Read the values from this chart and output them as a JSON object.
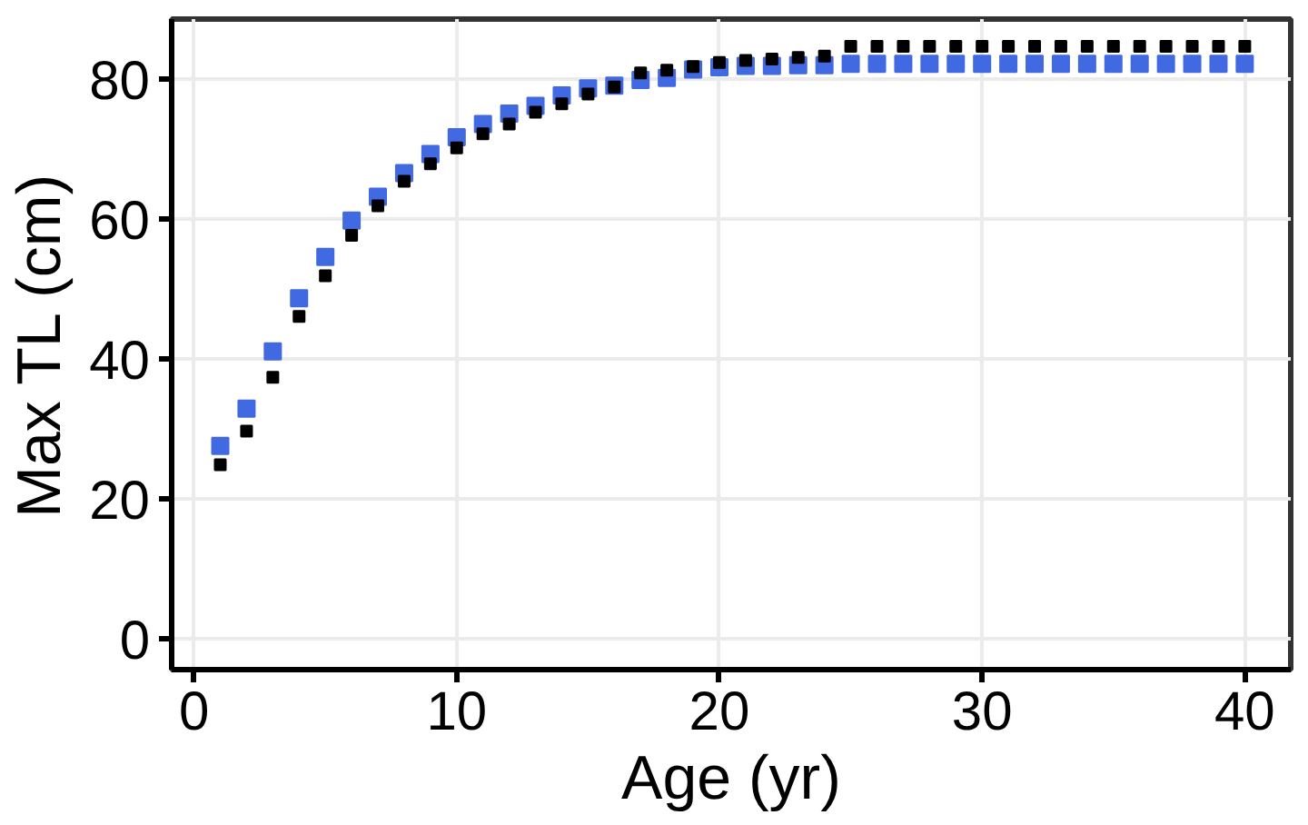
{
  "chart_data": {
    "type": "scatter",
    "xlabel": "Age (yr)",
    "ylabel": "Max TL (cm)",
    "marker": "square",
    "grid": true,
    "xlim": [
      -0.85,
      41.75
    ],
    "ylim": [
      -4.3,
      88.7
    ],
    "xticks": [
      0,
      10,
      20,
      30,
      40
    ],
    "yticks": [
      0,
      20,
      40,
      60,
      80
    ],
    "x": [
      1,
      2,
      3,
      4,
      5,
      6,
      7,
      8,
      9,
      10,
      11,
      12,
      13,
      14,
      15,
      16,
      17,
      18,
      19,
      20,
      21,
      22,
      23,
      24,
      25,
      26,
      27,
      28,
      29,
      30,
      31,
      32,
      33,
      34,
      35,
      36,
      37,
      38,
      39,
      40
    ],
    "series": [
      {
        "color": "#000000",
        "values": [
          25,
          29.8,
          37.5,
          46.2,
          52,
          57.8,
          62,
          65.5,
          68,
          70.3,
          72.3,
          73.7,
          75.4,
          76.6,
          78,
          79,
          81,
          81.4,
          81.9,
          82.5,
          82.8,
          83,
          83.2,
          83.4,
          84.8,
          84.8,
          84.8,
          84.8,
          84.8,
          84.8,
          84.8,
          84.8,
          84.8,
          84.8,
          84.8,
          84.8,
          84.8,
          84.8,
          84.8,
          84.8
        ]
      },
      {
        "color": "#4169e1",
        "values": [
          27.7,
          33,
          41.2,
          48.8,
          54.7,
          59.9,
          63.3,
          66.7,
          69.4,
          71.8,
          73.7,
          75.2,
          76.3,
          77.8,
          78.8,
          79.2,
          80,
          80.3,
          81.5,
          81.8,
          82,
          82,
          82.1,
          82.1,
          82.3,
          82.3,
          82.3,
          82.3,
          82.3,
          82.3,
          82.3,
          82.3,
          82.3,
          82.3,
          82.3,
          82.3,
          82.3,
          82.3,
          82.3,
          82.3
        ]
      }
    ]
  }
}
